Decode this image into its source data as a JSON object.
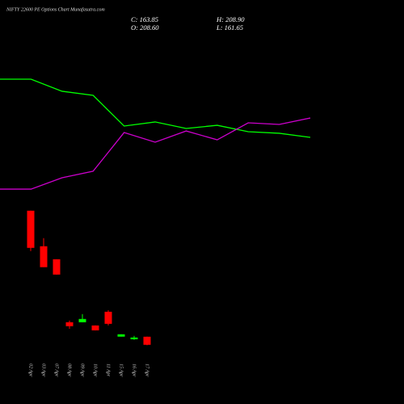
{
  "chart_data": [
    {
      "type": "line",
      "ylim": [
        0,
        100
      ],
      "series": [
        {
          "color": "#00ff00",
          "values": [
            90,
            90,
            81.7,
            78.9,
            57.8,
            60.6,
            56.1,
            58.3,
            53.9,
            52.8,
            50
          ]
        },
        {
          "color": "#cc00cc",
          "values": [
            14.4,
            14.4,
            22.2,
            26.7,
            53.3,
            46.7,
            54.4,
            48.3,
            60,
            58.9,
            63.3
          ]
        }
      ]
    },
    {
      "type": "candlestick",
      "title": "NIFTY 22600  PE Options  Chart Munafasutra.com",
      "summary": [
        "C: 163.85",
        "H: 208.90",
        "O: 208.60",
        "L: 161.65"
      ],
      "categories": [
        "02 Apr",
        "03 Apr",
        "07 Apr",
        "08 Apr",
        "09 Apr",
        "10 Apr",
        "11 Apr",
        "15 Apr",
        "16 Apr",
        "17 Apr"
      ],
      "open": [
        907,
        710,
        638,
        289,
        289,
        271,
        347,
        209,
        195,
        208.6
      ],
      "high": [
        907,
        755,
        638,
        298,
        334,
        271,
        356,
        222,
        213,
        208.9
      ],
      "low": [
        683,
        594,
        553,
        253,
        289,
        244,
        271,
        209,
        191,
        161.65
      ],
      "close": [
        701,
        594,
        553,
        267,
        307,
        244,
        280,
        222,
        204,
        163.85
      ],
      "ylim": [
        100,
        1000
      ],
      "up_color": "#00ff00",
      "down_color": "#ff0000"
    }
  ]
}
